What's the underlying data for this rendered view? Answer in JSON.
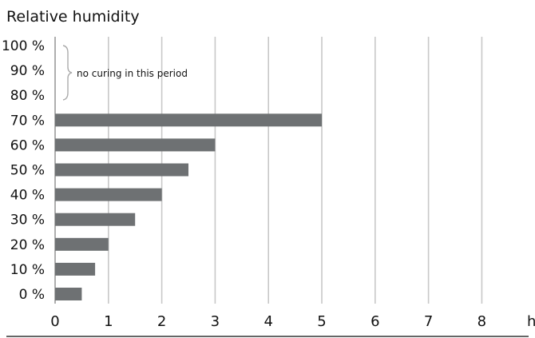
{
  "chart_data": {
    "type": "bar",
    "orientation": "horizontal",
    "title": "Relative humidity",
    "x_unit_label": "h",
    "categories": [
      "70 %",
      "60 %",
      "50 %",
      "40 %",
      "30 %",
      "20 %",
      "10 %",
      "0 %"
    ],
    "values": [
      5,
      3,
      2.5,
      2,
      1.5,
      1,
      0.75,
      0.5
    ],
    "y_ticks": [
      "100 %",
      "90 %",
      "80 %",
      "70 %",
      "60 %",
      "50 %",
      "40 %",
      "30 %",
      "20 %",
      "10 %",
      "0 %"
    ],
    "x_ticks": [
      0,
      1,
      2,
      3,
      4,
      5,
      6,
      7,
      8
    ],
    "xlim": [
      0,
      9
    ],
    "grid": "vertical",
    "annotation": {
      "text": "no curing in this period",
      "applies_to": [
        "100 %",
        "90 %",
        "80 %"
      ]
    },
    "bar_color": "#6e7173"
  }
}
